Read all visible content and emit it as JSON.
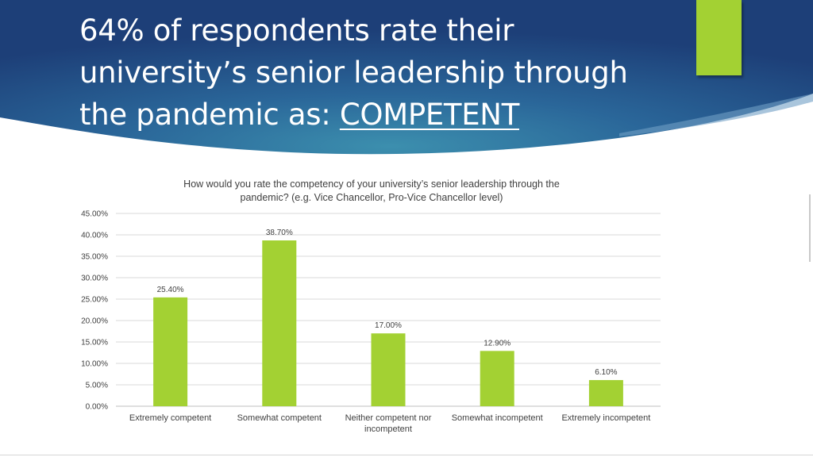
{
  "slide": {
    "title_main": "64% of respondents rate their university’s senior leadership through the pandemic as: ",
    "title_emphasis": "COMPETENT",
    "colors": {
      "header_dark": "#1d3f78",
      "header_light": "#3c8fae",
      "accent": "#a3d133",
      "bar": "#a3d133"
    }
  },
  "chart_data": {
    "type": "bar",
    "title": "How would you rate the competency of your university’s senior leadership through the pandemic? (e.g. Vice Chancellor, Pro-Vice Chancellor level)",
    "title_lines": [
      "How would you rate the competency of your university’s senior leadership through the",
      "pandemic? (e.g. Vice Chancellor, Pro-Vice Chancellor level)"
    ],
    "categories": [
      "Extremely competent",
      "Somewhat competent",
      "Neither competent nor incompetent",
      "Somewhat incompetent",
      "Extremely incompetent"
    ],
    "category_lines": [
      [
        "Extremely competent"
      ],
      [
        "Somewhat competent"
      ],
      [
        "Neither competent nor",
        "incompetent"
      ],
      [
        "Somewhat incompetent"
      ],
      [
        "Extremely incompetent"
      ]
    ],
    "values": [
      25.4,
      38.7,
      17.0,
      12.9,
      6.1
    ],
    "value_labels": [
      "25.40%",
      "38.70%",
      "17.00%",
      "12.90%",
      "6.10%"
    ],
    "ylim": [
      0,
      45
    ],
    "yticks": [
      0,
      5,
      10,
      15,
      20,
      25,
      30,
      35,
      40,
      45
    ],
    "ytick_labels": [
      "0.00%",
      "5.00%",
      "10.00%",
      "15.00%",
      "20.00%",
      "25.00%",
      "30.00%",
      "35.00%",
      "40.00%",
      "45.00%"
    ],
    "grid": true,
    "legend": "none"
  }
}
